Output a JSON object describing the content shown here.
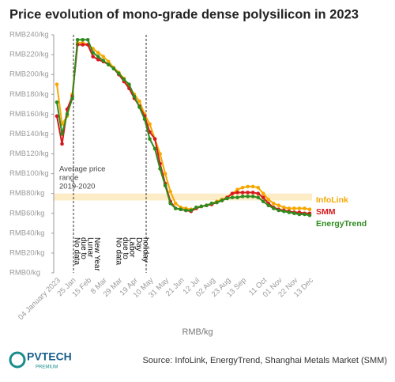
{
  "chart_data": {
    "type": "line",
    "title": "Price evolution of mono-grade dense polysilicon in 2023",
    "categories": [
      "04 January 2023",
      null,
      null,
      "25 Jan",
      null,
      null,
      "15 Feb",
      null,
      null,
      "8 Mar",
      null,
      null,
      "29 Mar",
      null,
      null,
      "19 Apr",
      null,
      null,
      "10 May",
      null,
      null,
      "31 May",
      null,
      null,
      "21 Jun",
      null,
      null,
      "12 Jul",
      null,
      null,
      "02 Aug",
      null,
      null,
      "23 Aug",
      null,
      null,
      "13 Sep",
      null,
      null,
      null,
      "11 Oct",
      null,
      null,
      "01 Nov",
      null,
      null,
      "22 Nov",
      null,
      null,
      "13 Dec"
    ],
    "series": [
      {
        "name": "InfoLink",
        "color": "#f5a800",
        "values": [
          190,
          150,
          158,
          180,
          232,
          232,
          230,
          226,
          222,
          218,
          213,
          207,
          202,
          196,
          188,
          180,
          173,
          160,
          150,
          135,
          120,
          100,
          82,
          70,
          66,
          65,
          64,
          65,
          67,
          68,
          70,
          72,
          74,
          76,
          80,
          84,
          86,
          87,
          87,
          86,
          80,
          74,
          70,
          68,
          66,
          65,
          65,
          65,
          65,
          64
        ]
      },
      {
        "name": "SMM",
        "color": "#d7191c",
        "values": [
          158,
          130,
          165,
          178,
          230,
          230,
          230,
          218,
          215,
          213,
          210,
          206,
          200,
          193,
          186,
          176,
          168,
          158,
          142,
          135,
          110,
          90,
          72,
          65,
          64,
          63,
          62,
          65,
          67,
          68,
          69,
          71,
          73,
          76,
          80,
          81,
          81,
          81,
          81,
          80,
          76,
          70,
          66,
          64,
          63,
          62,
          61,
          61,
          60,
          60
        ]
      },
      {
        "name": "EnergyTrend",
        "color": "#2e8b1e",
        "values": [
          172,
          140,
          160,
          176,
          235,
          235,
          235,
          222,
          218,
          214,
          210,
          206,
          201,
          195,
          190,
          178,
          167,
          155,
          135,
          125,
          105,
          88,
          70,
          65,
          64,
          63,
          63,
          66,
          67,
          68,
          70,
          71,
          73,
          75,
          76,
          76,
          77,
          77,
          77,
          76,
          72,
          68,
          65,
          63,
          62,
          61,
          60,
          59,
          59,
          58
        ]
      }
    ],
    "ylim": [
      0,
      240
    ],
    "yticks": [
      {
        "value": 0,
        "label": "RMB0/kg"
      },
      {
        "value": 20,
        "label": "RMB20/kg"
      },
      {
        "value": 40,
        "label": "RMB40/kg"
      },
      {
        "value": 60,
        "label": "RMB60/kg"
      },
      {
        "value": 80,
        "label": "RMB80/kg"
      },
      {
        "value": 100,
        "label": "RMB100/kg"
      },
      {
        "value": 120,
        "label": "RMB120/kg"
      },
      {
        "value": 140,
        "label": "RMB140/kg"
      },
      {
        "value": 160,
        "label": "RMB160/kg"
      },
      {
        "value": 180,
        "label": "RMB180/kg"
      },
      {
        "value": 200,
        "label": "RMB200/kg"
      },
      {
        "value": 220,
        "label": "RMB220/kg"
      },
      {
        "value": 240,
        "label": "RMB240/kg"
      }
    ],
    "x_label": "RMB/kg",
    "reference_band": {
      "range": [
        73,
        80
      ],
      "label": [
        "Average price",
        "range",
        "2019-2020"
      ]
    },
    "annotations": [
      [
        "No data",
        "due to",
        "Lunar",
        "New Year"
      ],
      [
        "No data",
        "due to",
        "Labor",
        "Day",
        "holiday"
      ]
    ],
    "source": "Source: InfoLink, EnergyTrend, Shanghai Metals Market (SMM)",
    "logo": {
      "name": "PVTECH",
      "tag": "PREMIUM"
    }
  }
}
